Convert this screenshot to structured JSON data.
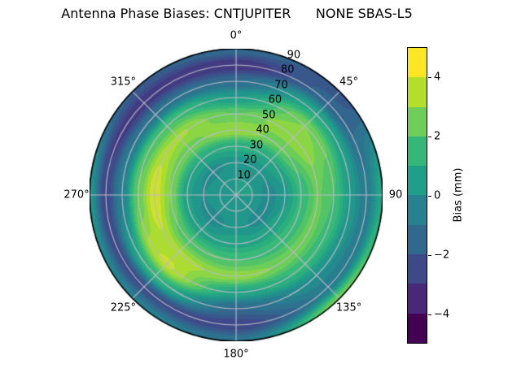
{
  "title": "Antenna Phase Biases: CNTJUPITER      NONE SBAS-L5",
  "polar": {
    "azimuth_labels": [
      {
        "text": "0°",
        "angle": 0
      },
      {
        "text": "45°",
        "angle": 45
      },
      {
        "text": "90",
        "angle": 90
      },
      {
        "text": "135°",
        "angle": 135
      },
      {
        "text": "180°",
        "angle": 180
      },
      {
        "text": "225°",
        "angle": 225
      },
      {
        "text": "270°",
        "angle": 270
      },
      {
        "text": "315°",
        "angle": 315
      }
    ],
    "radial_labels": [
      {
        "text": "10",
        "r": 10
      },
      {
        "text": "20",
        "r": 20
      },
      {
        "text": "30",
        "r": 30
      },
      {
        "text": "40",
        "r": 40
      },
      {
        "text": "50",
        "r": 50
      },
      {
        "text": "60",
        "r": 60
      },
      {
        "text": "70",
        "r": 70
      },
      {
        "text": "80",
        "r": 80
      },
      {
        "text": "90",
        "r": 90
      }
    ]
  },
  "colorbar": {
    "label": "Bias (mm)",
    "min": -5,
    "max": 5,
    "ticks": [
      {
        "text": "4",
        "value": 4
      },
      {
        "text": "2",
        "value": 2
      },
      {
        "text": "0",
        "value": 0
      },
      {
        "text": "−2",
        "value": -2
      },
      {
        "text": "−4",
        "value": -4
      }
    ],
    "band_colors_top_to_bottom": [
      "#fde725",
      "#b5de2b",
      "#6ece58",
      "#35b779",
      "#1f9e89",
      "#26828e",
      "#31688e",
      "#3e4989",
      "#482878",
      "#440154"
    ]
  },
  "colors": {
    "background": "#ffffff",
    "grid": "#bcbcc8",
    "outline": "#000000",
    "viridis_anchors": [
      "#440154",
      "#482878",
      "#3e4989",
      "#31688e",
      "#26828e",
      "#1f9e89",
      "#35b779",
      "#6ece58",
      "#b5de2b",
      "#fde725"
    ]
  },
  "chart_data": {
    "type": "heatmap",
    "projection": "polar",
    "title": "Antenna Phase Biases: CNTJUPITER      NONE SBAS-L5",
    "colorbar_label": "Bias (mm)",
    "value_range": [
      -5,
      5
    ],
    "contour_level_step": 0.5,
    "azimuth_deg": [
      0,
      45,
      90,
      135,
      180,
      225,
      270,
      315
    ],
    "zenith_deg": [
      0,
      10,
      20,
      30,
      40,
      50,
      60,
      70,
      80,
      90
    ],
    "bias_mm": [
      [
        0.5,
        0.5,
        0.2,
        1.2,
        3.5,
        2.5,
        0.5,
        -1.5,
        -3.5,
        -1.5
      ],
      [
        0.5,
        0.5,
        0.2,
        1.0,
        2.6,
        3.5,
        3.0,
        1.0,
        -1.8,
        -2.3
      ],
      [
        0.5,
        0.5,
        -0.3,
        0.4,
        1.6,
        2.6,
        2.0,
        0.4,
        -0.9,
        1.0
      ],
      [
        0.5,
        0.4,
        -0.3,
        0.8,
        1.8,
        2.8,
        1.6,
        0.0,
        -0.9,
        2.8
      ],
      [
        0.5,
        0.5,
        0.3,
        0.8,
        2.0,
        3.3,
        0.8,
        -1.6,
        -2.9,
        -1.0
      ],
      [
        0.5,
        0.4,
        -0.3,
        0.6,
        2.2,
        3.7,
        4.1,
        1.5,
        -2.6,
        -0.6
      ],
      [
        0.5,
        0.4,
        0.0,
        0.6,
        3.0,
        4.4,
        2.6,
        -0.6,
        -2.9,
        0.3
      ],
      [
        0.5,
        0.4,
        -0.2,
        1.0,
        2.8,
        3.6,
        2.0,
        -1.2,
        -3.4,
        -2.0
      ]
    ],
    "radial_grid_deg": [
      10,
      20,
      30,
      40,
      50,
      60,
      70,
      80,
      90
    ],
    "angular_grid_step_deg": 45,
    "legend_position": "right"
  }
}
